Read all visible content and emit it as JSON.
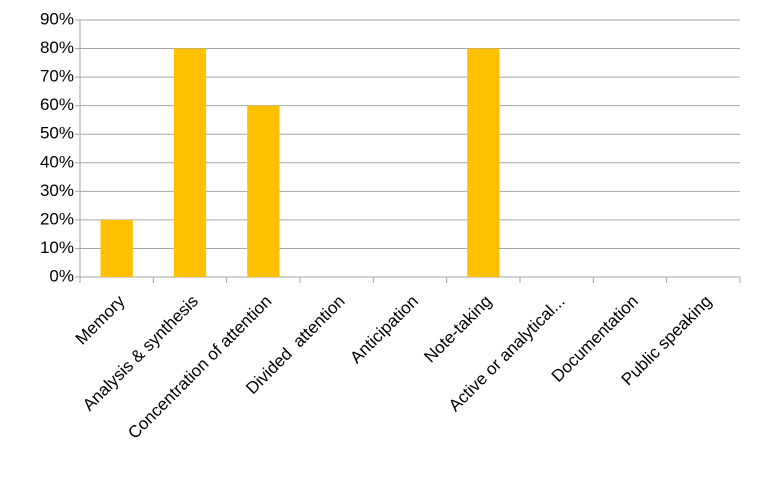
{
  "chart_data": {
    "type": "bar",
    "categories": [
      "Memory",
      "Analysis & synthesis",
      "Concentration of attention",
      "Divided  attention",
      "Anticipation",
      "Note-taking",
      "Active or analytical...",
      "Documentation",
      "Public speaking"
    ],
    "values": [
      20,
      80,
      60,
      0,
      0,
      80,
      0,
      0,
      0
    ],
    "color": "#ffc000",
    "ylim": [
      0,
      90
    ],
    "yticks": [
      {
        "value": 0,
        "label": "0%"
      },
      {
        "value": 10,
        "label": "10%"
      },
      {
        "value": 20,
        "label": "20%"
      },
      {
        "value": 30,
        "label": "30%"
      },
      {
        "value": 40,
        "label": "40%"
      },
      {
        "value": 50,
        "label": "50%"
      },
      {
        "value": 60,
        "label": "60%"
      },
      {
        "value": 70,
        "label": "70%"
      },
      {
        "value": 80,
        "label": "80%"
      },
      {
        "value": 90,
        "label": "90%"
      }
    ],
    "grid": true
  }
}
